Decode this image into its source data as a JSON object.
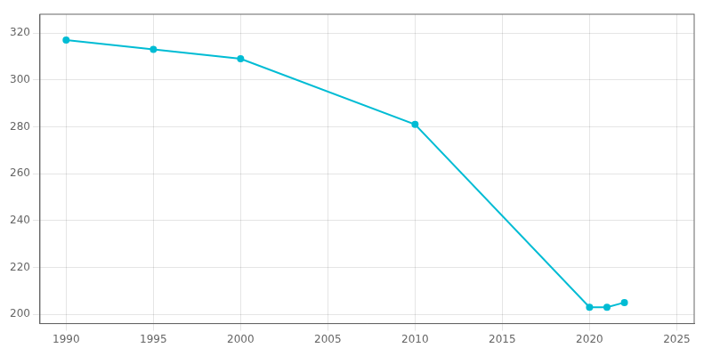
{
  "chart_data": {
    "type": "line",
    "x": [
      1990,
      1995,
      2000,
      2010,
      2020,
      2021,
      2022
    ],
    "values": [
      317,
      313,
      309,
      281,
      203,
      203,
      205
    ],
    "color": "#00bcd4",
    "marker": "circle",
    "xlim": [
      1988.5,
      2026
    ],
    "ylim": [
      196,
      328
    ],
    "xticks": [
      1990,
      1995,
      2000,
      2005,
      2010,
      2015,
      2020,
      2025
    ],
    "yticks": [
      200,
      220,
      240,
      260,
      280,
      300,
      320
    ],
    "grid": true
  }
}
